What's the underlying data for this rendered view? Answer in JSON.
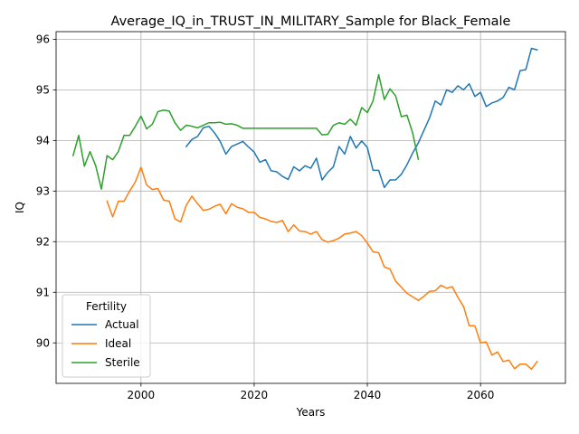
{
  "chart_data": {
    "type": "line",
    "title": "Average_IQ_in_TRUST_IN_MILITARY_Sample for Black_Female",
    "xlabel": "Years",
    "ylabel": "IQ",
    "xlim": [
      1985,
      2075
    ],
    "ylim": [
      89.2,
      96.15
    ],
    "xticks": [
      2000,
      2020,
      2040,
      2060
    ],
    "yticks": [
      90,
      91,
      92,
      93,
      94,
      95,
      96
    ],
    "grid": true,
    "legend": {
      "title": "Fertility",
      "placement": "lower-left"
    },
    "series": [
      {
        "name": "Actual",
        "color": "#1f77b4",
        "x": [
          2008,
          2009,
          2010,
          2011,
          2012,
          2013,
          2014,
          2015,
          2016,
          2017,
          2018,
          2019,
          2020,
          2021,
          2022,
          2023,
          2024,
          2025,
          2026,
          2027,
          2028,
          2029,
          2030,
          2031,
          2032,
          2033,
          2034,
          2035,
          2036,
          2037,
          2038,
          2039,
          2040,
          2041,
          2042,
          2043,
          2044,
          2045,
          2046,
          2047,
          2048,
          2049,
          2050,
          2051,
          2052,
          2053,
          2054,
          2055,
          2056,
          2057,
          2058,
          2059,
          2060,
          2061,
          2062,
          2063,
          2064,
          2065,
          2066,
          2067,
          2068,
          2069,
          2070
        ],
        "values": [
          93.88,
          94.02,
          94.08,
          94.25,
          94.28,
          94.15,
          93.98,
          93.73,
          93.88,
          93.93,
          93.98,
          93.87,
          93.77,
          93.57,
          93.62,
          93.4,
          93.38,
          93.29,
          93.23,
          93.48,
          93.4,
          93.5,
          93.45,
          93.65,
          93.22,
          93.37,
          93.48,
          93.88,
          93.73,
          94.08,
          93.85,
          93.99,
          93.86,
          93.41,
          93.41,
          93.07,
          93.22,
          93.22,
          93.33,
          93.52,
          93.75,
          93.95,
          94.2,
          94.45,
          94.78,
          94.7,
          95.0,
          94.95,
          95.08,
          95.0,
          95.12,
          94.87,
          94.95,
          94.67,
          94.74,
          94.78,
          94.85,
          95.05,
          95.0,
          95.38,
          95.4,
          95.82,
          95.79
        ]
      },
      {
        "name": "Ideal",
        "color": "#ff7f0e",
        "x": [
          1994,
          1995,
          1996,
          1997,
          1998,
          1999,
          2000,
          2001,
          2002,
          2003,
          2004,
          2005,
          2006,
          2007,
          2008,
          2009,
          2010,
          2011,
          2012,
          2013,
          2014,
          2015,
          2016,
          2017,
          2018,
          2019,
          2020,
          2021,
          2022,
          2023,
          2024,
          2025,
          2026,
          2027,
          2028,
          2029,
          2030,
          2031,
          2032,
          2033,
          2034,
          2035,
          2036,
          2037,
          2038,
          2039,
          2040,
          2041,
          2042,
          2043,
          2044,
          2045,
          2046,
          2047,
          2048,
          2049,
          2050,
          2051,
          2052,
          2053,
          2054,
          2055,
          2056,
          2057,
          2058,
          2059,
          2060,
          2061,
          2062,
          2063,
          2064,
          2065,
          2066,
          2067,
          2068,
          2069,
          2070
        ],
        "values": [
          92.8,
          92.49,
          92.8,
          92.8,
          93.0,
          93.18,
          93.47,
          93.12,
          93.03,
          93.05,
          92.82,
          92.8,
          92.45,
          92.39,
          92.72,
          92.9,
          92.75,
          92.62,
          92.64,
          92.7,
          92.74,
          92.55,
          92.75,
          92.68,
          92.65,
          92.58,
          92.58,
          92.48,
          92.45,
          92.4,
          92.38,
          92.42,
          92.2,
          92.33,
          92.21,
          92.2,
          92.15,
          92.2,
          92.04,
          91.99,
          92.02,
          92.07,
          92.15,
          92.17,
          92.2,
          92.12,
          91.97,
          91.8,
          91.78,
          91.5,
          91.46,
          91.22,
          91.1,
          90.98,
          90.91,
          90.84,
          90.92,
          91.02,
          91.03,
          91.14,
          91.08,
          91.11,
          90.9,
          90.72,
          90.34,
          90.34,
          90.0,
          90.02,
          89.76,
          89.82,
          89.63,
          89.66,
          89.49,
          89.58,
          89.58,
          89.48,
          89.63
        ]
      },
      {
        "name": "Sterile",
        "color": "#2ca02c",
        "x": [
          1988,
          1989,
          1990,
          1991,
          1992,
          1993,
          1994,
          1995,
          1996,
          1997,
          1998,
          1999,
          2000,
          2001,
          2002,
          2003,
          2004,
          2005,
          2006,
          2007,
          2008,
          2009,
          2010,
          2011,
          2012,
          2013,
          2014,
          2015,
          2016,
          2017,
          2018,
          2019,
          2020,
          2021,
          2022,
          2023,
          2024,
          2025,
          2026,
          2027,
          2028,
          2029,
          2030,
          2031,
          2032,
          2033,
          2034,
          2035,
          2036,
          2037,
          2038,
          2039,
          2040,
          2041,
          2042,
          2043,
          2044,
          2045,
          2046,
          2047,
          2048,
          2049
        ],
        "values": [
          93.7,
          94.1,
          93.49,
          93.78,
          93.5,
          93.04,
          93.7,
          93.62,
          93.78,
          94.1,
          94.1,
          94.28,
          94.48,
          94.23,
          94.32,
          94.57,
          94.6,
          94.58,
          94.35,
          94.2,
          94.3,
          94.28,
          94.25,
          94.3,
          94.35,
          94.35,
          94.36,
          94.32,
          94.33,
          94.3,
          94.24,
          94.24,
          94.24,
          94.24,
          94.24,
          94.24,
          94.24,
          94.24,
          94.24,
          94.24,
          94.24,
          94.24,
          94.24,
          94.24,
          94.11,
          94.12,
          94.3,
          94.35,
          94.32,
          94.42,
          94.3,
          94.65,
          94.55,
          94.78,
          95.3,
          94.81,
          95.02,
          94.88,
          94.47,
          94.5,
          94.15,
          93.63
        ]
      }
    ]
  }
}
